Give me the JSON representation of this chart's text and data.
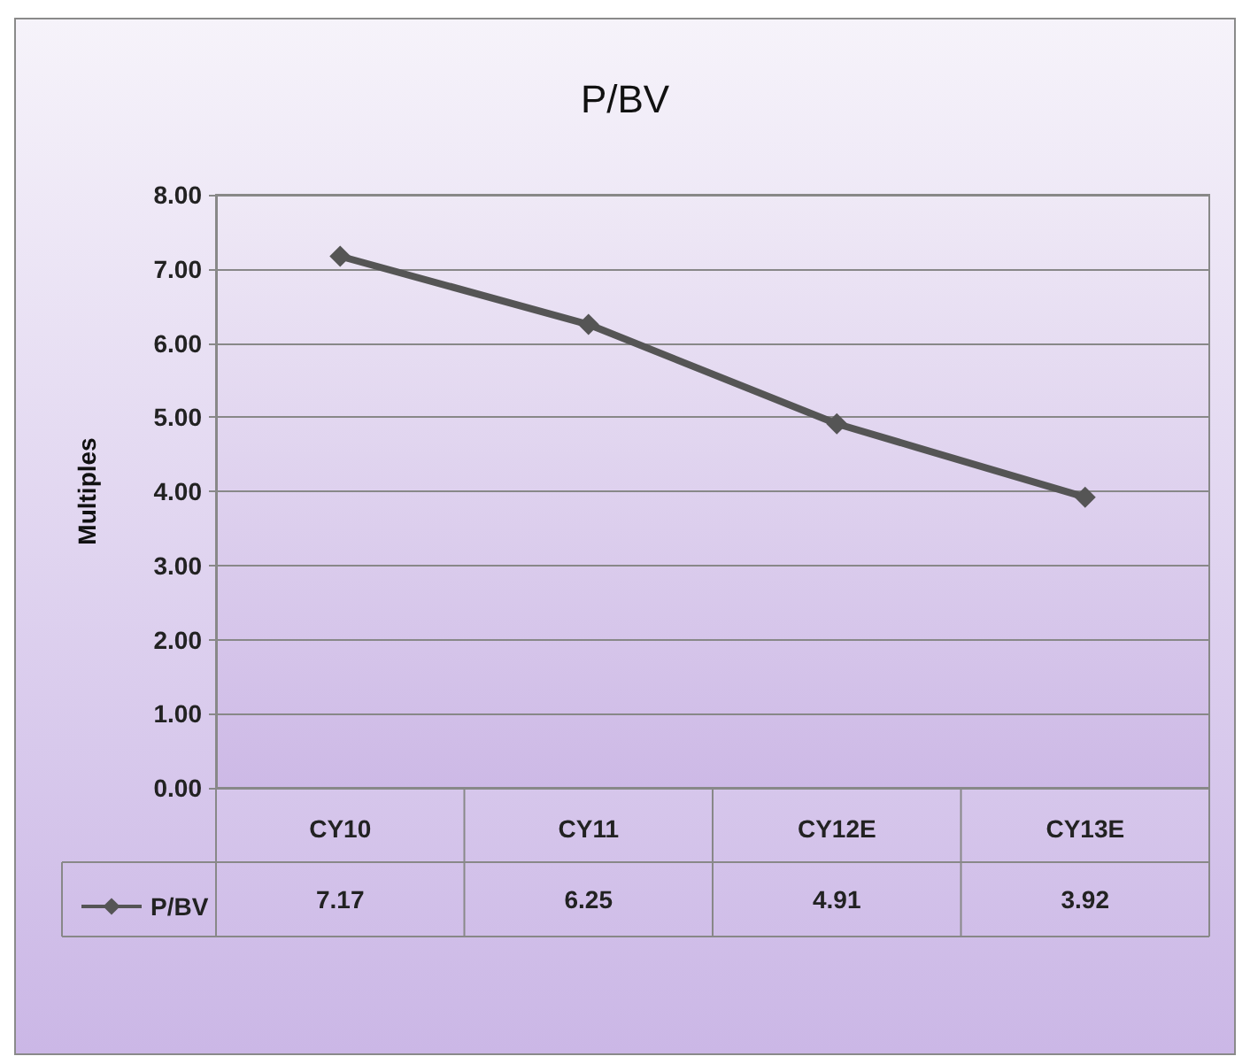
{
  "chart_data": {
    "type": "line",
    "title": "P/BV",
    "ylabel": "Multiples",
    "categories": [
      "CY10",
      "CY11",
      "CY12E",
      "CY13E"
    ],
    "series": [
      {
        "name": "P/BV",
        "color": "#555555",
        "values": [
          7.17,
          6.25,
          4.91,
          3.92
        ]
      }
    ],
    "ylim": [
      0,
      8
    ],
    "yticks": [
      {
        "value": 0,
        "label": "0.00"
      },
      {
        "value": 1,
        "label": "1.00"
      },
      {
        "value": 2,
        "label": "2.00"
      },
      {
        "value": 3,
        "label": "3.00"
      },
      {
        "value": 4,
        "label": "4.00"
      },
      {
        "value": 5,
        "label": "5.00"
      },
      {
        "value": 6,
        "label": "6.00"
      },
      {
        "value": 7,
        "label": "7.00"
      },
      {
        "value": 8,
        "label": "8.00"
      }
    ],
    "grid": "y",
    "legend": "bottom left",
    "marker": "diamond",
    "line_style": "solid",
    "data_labels": true
  }
}
